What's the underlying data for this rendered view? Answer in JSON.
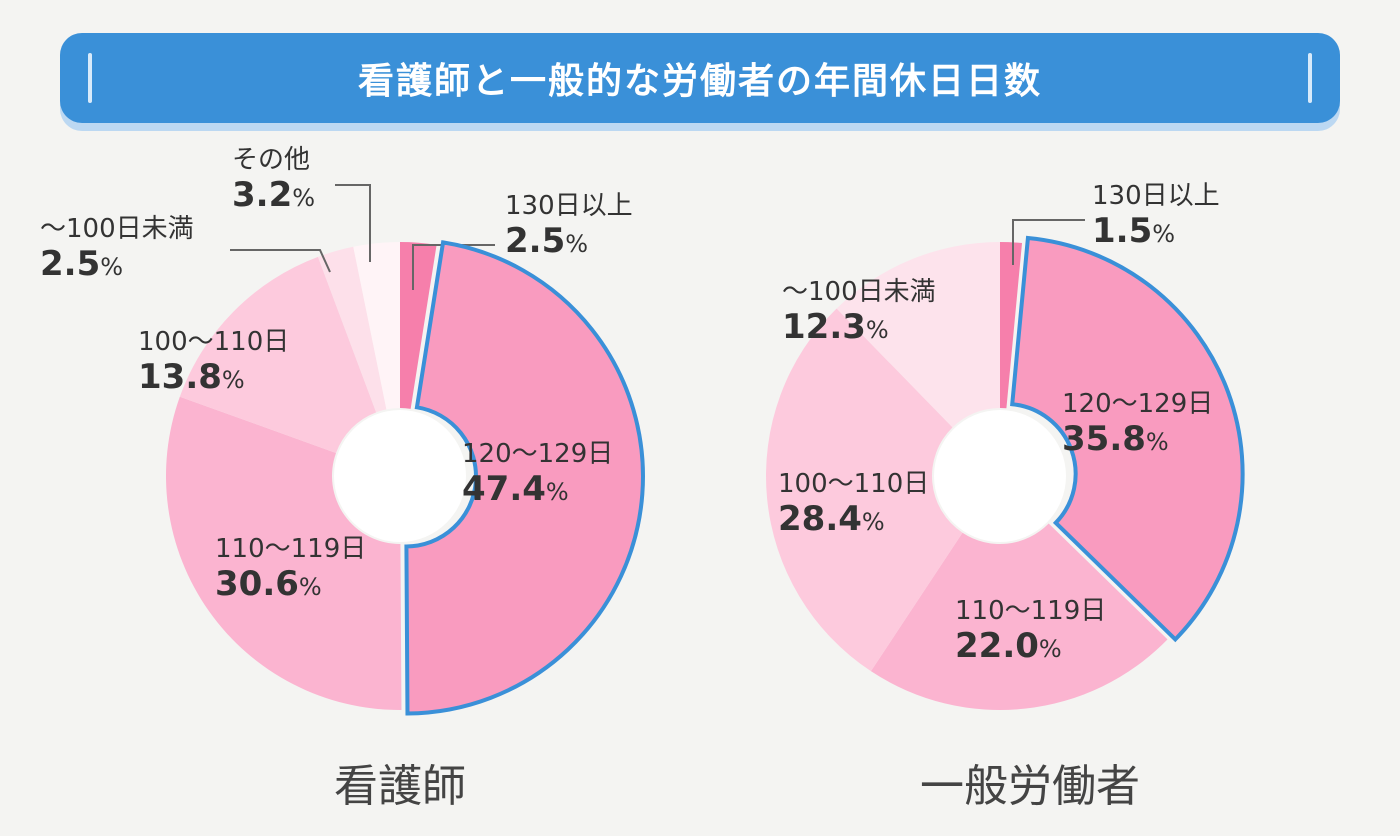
{
  "title": "看護師と一般的な労働者の年間休日日数",
  "chart_data": [
    {
      "type": "pie",
      "name": "看護師",
      "unit": "%",
      "legend": "none",
      "categories": [
        "130日以上",
        "120〜129日",
        "110〜119日",
        "100〜110日",
        "〜100日未満",
        "その他"
      ],
      "values": [
        2.5,
        47.4,
        30.6,
        13.8,
        2.5,
        3.2
      ],
      "colors": [
        "#f67fab",
        "#f99bbf",
        "#fbb4d0",
        "#fdcadd",
        "#fde0ea",
        "#fff4f7"
      ],
      "highlight": "120〜129日"
    },
    {
      "type": "pie",
      "name": "一般労働者",
      "unit": "%",
      "legend": "none",
      "categories": [
        "130日以上",
        "120〜129日",
        "110〜119日",
        "100〜110日",
        "〜100日未満"
      ],
      "values": [
        1.5,
        35.8,
        22.0,
        28.4,
        12.3
      ],
      "colors": [
        "#f67fab",
        "#f99bbf",
        "#fbb4d0",
        "#fdcadd",
        "#fde3ec"
      ],
      "highlight": "120〜129日"
    }
  ],
  "highlight_color": "#3a90d8"
}
